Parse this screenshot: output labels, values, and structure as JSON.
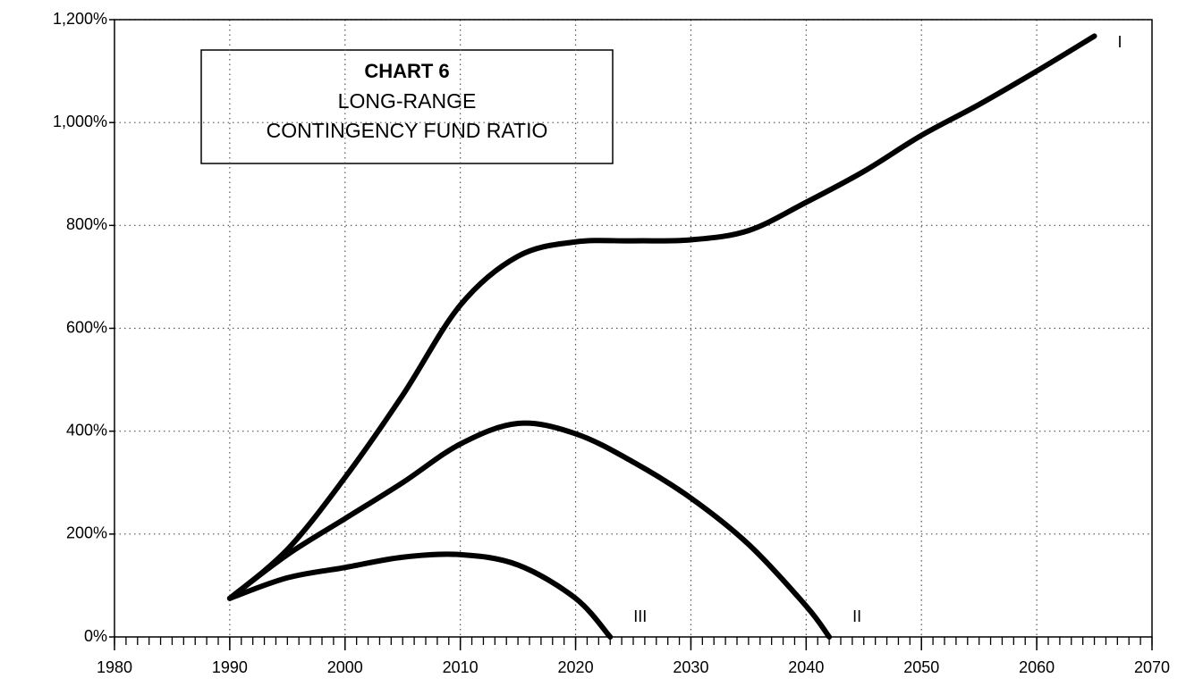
{
  "chart_data": {
    "type": "line",
    "title": "CHART 6",
    "subtitle": [
      "LONG-RANGE",
      "CONTINGENCY FUND RATIO"
    ],
    "series": [
      {
        "name": "I",
        "color": "#000000",
        "x": [
          1990,
          1995,
          2000,
          2005,
          2010,
          2015,
          2020,
          2025,
          2030,
          2035,
          2040,
          2045,
          2050,
          2055,
          2060,
          2065
        ],
        "values": [
          75,
          170,
          310,
          470,
          645,
          740,
          768,
          770,
          772,
          790,
          845,
          905,
          975,
          1035,
          1100,
          1168
        ]
      },
      {
        "name": "II",
        "color": "#000000",
        "x": [
          1990,
          1995,
          2000,
          2005,
          2010,
          2015,
          2020,
          2025,
          2030,
          2035,
          2040,
          2042
        ],
        "values": [
          75,
          160,
          230,
          300,
          375,
          415,
          395,
          340,
          270,
          180,
          60,
          0
        ]
      },
      {
        "name": "III",
        "color": "#000000",
        "x": [
          1990,
          1995,
          2000,
          2005,
          2010,
          2015,
          2020,
          2023
        ],
        "values": [
          75,
          115,
          135,
          155,
          160,
          140,
          75,
          0
        ]
      }
    ],
    "xlim": [
      1980,
      2070
    ],
    "xticks": [
      1980,
      1990,
      2000,
      2010,
      2020,
      2030,
      2040,
      2050,
      2060,
      2070
    ],
    "ylim": [
      0,
      1200
    ],
    "yticks": [
      {
        "value": 0,
        "label": "0%"
      },
      {
        "value": 200,
        "label": "200%"
      },
      {
        "value": 400,
        "label": "400%"
      },
      {
        "value": 600,
        "label": "600%"
      },
      {
        "value": 800,
        "label": "800%"
      },
      {
        "value": 1000,
        "label": "1,000%"
      },
      {
        "value": 1200,
        "label": "1,200%"
      }
    ],
    "grid": true
  }
}
